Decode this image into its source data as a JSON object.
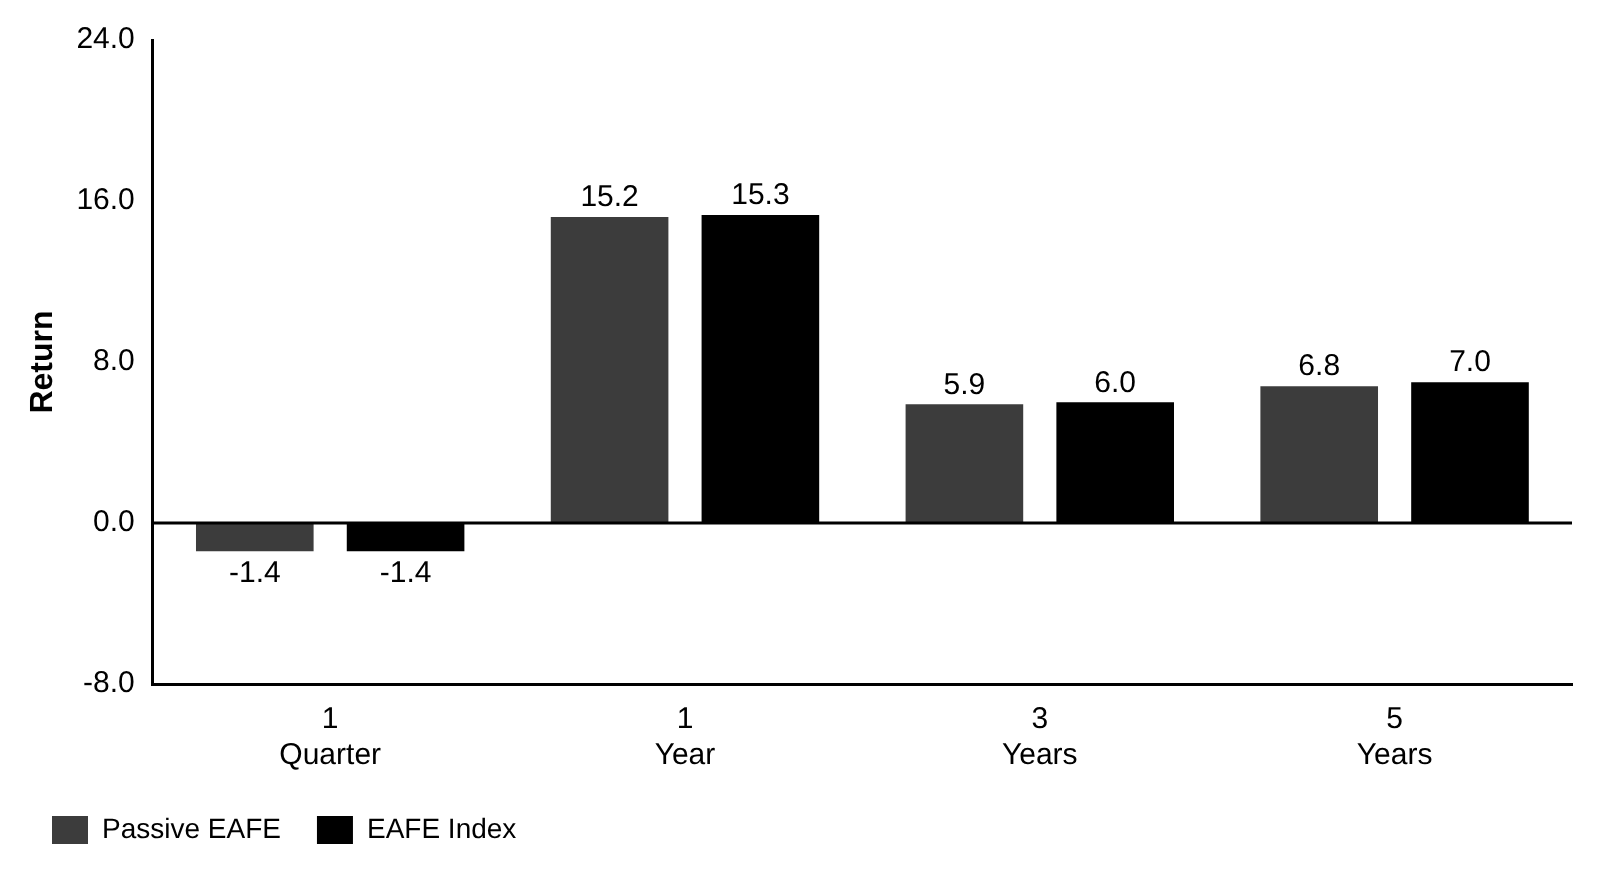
{
  "chart_data": {
    "type": "bar",
    "ylabel": "Return",
    "categories": [
      "1\nQuarter",
      "1\nYear",
      "3\nYears",
      "5\nYears"
    ],
    "series": [
      {
        "name": "Passive EAFE",
        "color": "#3c3c3c",
        "values": [
          -1.4,
          15.2,
          5.9,
          6.8
        ],
        "value_labels": [
          "-1.4",
          "15.2",
          "5.9",
          "6.8"
        ]
      },
      {
        "name": "EAFE Index",
        "color": "#000000",
        "values": [
          -1.4,
          15.3,
          6.0,
          7.0
        ],
        "value_labels": [
          "-1.4",
          "15.3",
          "6.0",
          "7.0"
        ]
      }
    ],
    "ylim": [
      -8,
      24
    ],
    "yticks": [
      {
        "value": -8,
        "label": "-8.0"
      },
      {
        "value": 0,
        "label": "0.0"
      },
      {
        "value": 8,
        "label": "8.0"
      },
      {
        "value": 16,
        "label": "16.0"
      },
      {
        "value": 24,
        "label": "24.0"
      }
    ],
    "ref_lines": [
      {
        "axis": "y",
        "value": 0
      }
    ],
    "grid": false,
    "legend": "bottom left"
  }
}
